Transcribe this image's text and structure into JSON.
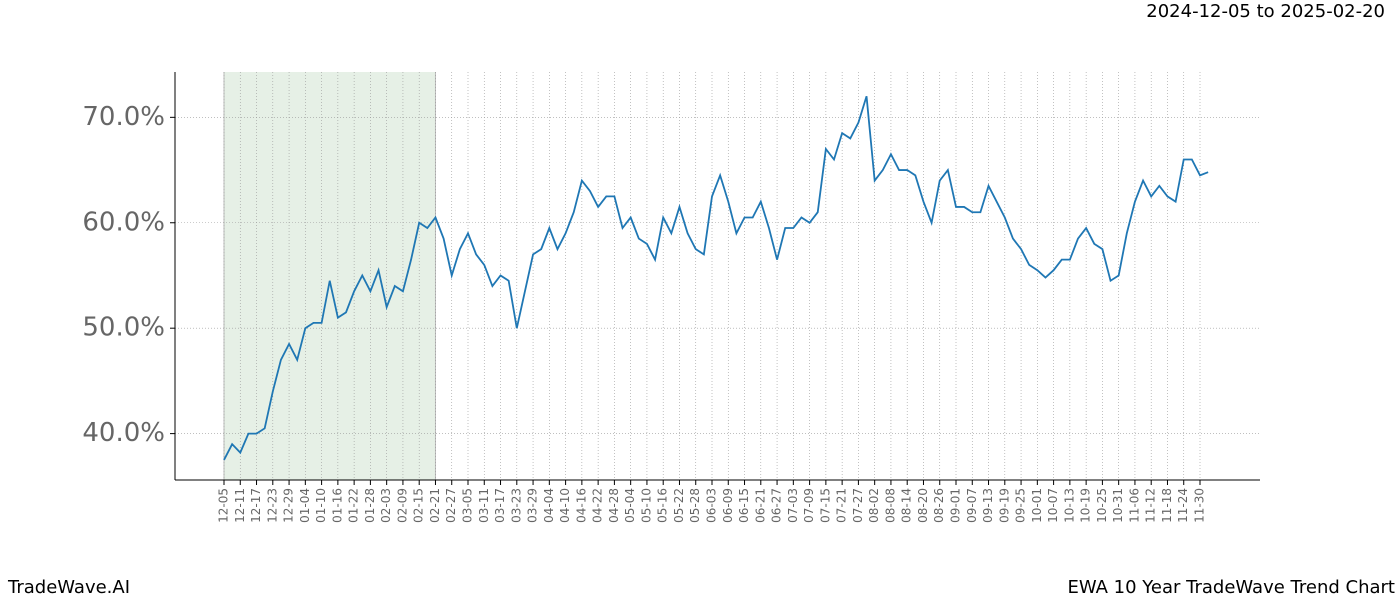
{
  "chart_data": {
    "type": "line",
    "title": "EWA 10 Year TradeWave Trend Chart",
    "subtitle": "2024-12-05 to 2025-02-20",
    "source": "TradeWave.AI",
    "categories": [
      "12-05",
      null,
      "12-11",
      null,
      "12-17",
      null,
      "12-23",
      null,
      "12-29",
      null,
      "01-04",
      null,
      "01-10",
      null,
      "01-16",
      null,
      "01-22",
      null,
      "01-28",
      null,
      "02-03",
      null,
      "02-09",
      null,
      "02-15",
      null,
      "02-21",
      null,
      "02-27",
      null,
      "03-05",
      null,
      "03-11",
      null,
      "03-17",
      null,
      "03-23",
      null,
      "03-29",
      null,
      "04-04",
      null,
      "04-10",
      null,
      "04-16",
      null,
      "04-22",
      null,
      "04-28",
      null,
      "05-04",
      null,
      "05-10",
      null,
      "05-16",
      null,
      "05-22",
      null,
      "05-28",
      null,
      "06-03",
      null,
      "06-09",
      null,
      "06-15",
      null,
      "06-21",
      null,
      "06-27",
      null,
      "07-03",
      null,
      "07-09",
      null,
      "07-15",
      null,
      "07-21",
      null,
      "07-27",
      null,
      "08-02",
      null,
      "08-08",
      null,
      "08-14",
      null,
      "08-20",
      null,
      "08-26",
      null,
      "09-01",
      null,
      "09-07",
      null,
      "09-13",
      null,
      "09-19",
      null,
      "09-25",
      null,
      "10-01",
      null,
      "10-07",
      null,
      "10-13",
      null,
      "10-19",
      null,
      "10-25",
      null,
      "10-31",
      null,
      "11-06",
      null,
      "11-12",
      null,
      "11-18",
      null,
      "11-24",
      null,
      "11-30",
      null
    ],
    "series": [
      {
        "color": "#1f77b4",
        "values": [
          37.5,
          39,
          38.2,
          40,
          40,
          40.5,
          44,
          47,
          48.5,
          47,
          50,
          50.5,
          50.5,
          54.5,
          51,
          51.5,
          53.5,
          55,
          53.5,
          55.5,
          52,
          54,
          53.5,
          56.5,
          60,
          59.5,
          60.5,
          58.5,
          55,
          57.5,
          59,
          57,
          56,
          54,
          55,
          54.5,
          50,
          53.5,
          57,
          57.5,
          59.5,
          57.5,
          59,
          61,
          64,
          63,
          61.5,
          62.5,
          62.5,
          59.5,
          60.5,
          58.5,
          58,
          56.5,
          60.5,
          59,
          61.5,
          59,
          57.5,
          57,
          62.5,
          64.5,
          62,
          59,
          60.5,
          60.5,
          62,
          59.5,
          56.5,
          59.5,
          59.5,
          60.5,
          60,
          61,
          67,
          66,
          68.5,
          68,
          69.5,
          72,
          64,
          65,
          66.5,
          65,
          65,
          64.5,
          62,
          60,
          64,
          65,
          61.5,
          61.5,
          61,
          61,
          63.5,
          62,
          60.5,
          58.5,
          57.5,
          56,
          55.5,
          54.8,
          55.5,
          56.5,
          56.5,
          58.5,
          59.5,
          58,
          57.5,
          54.5,
          55,
          59,
          62,
          64,
          62.5,
          63.5,
          62.5,
          62,
          66,
          66,
          64.5,
          64.8
        ]
      }
    ],
    "highlight_range": [
      "12-05",
      "02-21"
    ],
    "highlight_color": "#e6f0e6",
    "ylim": [
      35.6,
      74.3
    ],
    "yticks": [
      {
        "value": 40,
        "label": "40.0%"
      },
      {
        "value": 50,
        "label": "50.0%"
      },
      {
        "value": 60,
        "label": "60.0%"
      },
      {
        "value": 70,
        "label": "70.0%"
      }
    ],
    "grid": true
  }
}
